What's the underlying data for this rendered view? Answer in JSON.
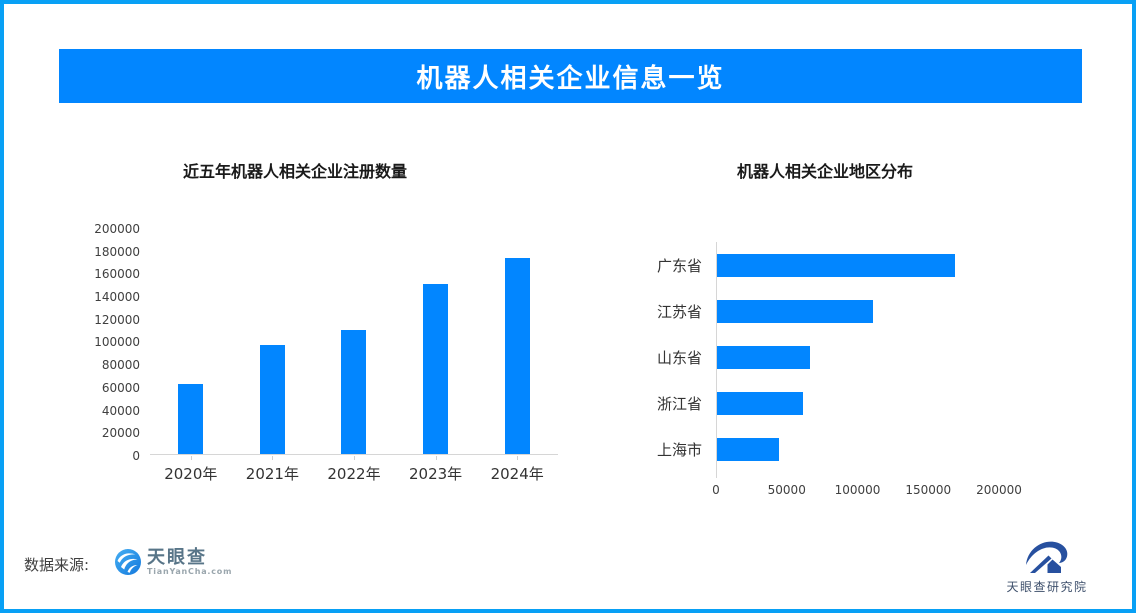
{
  "header": {
    "title": "机器人相关企业信息一览"
  },
  "chart_data": [
    {
      "type": "bar",
      "orientation": "vertical",
      "title": "近五年机器人相关企业注册数量",
      "categories": [
        "2020年",
        "2021年",
        "2022年",
        "2023年",
        "2024年"
      ],
      "values": [
        62000,
        97000,
        110000,
        151000,
        174000
      ],
      "xlabel": "",
      "ylabel": "",
      "ylim": [
        0,
        200000
      ],
      "yticks": [
        0,
        20000,
        40000,
        60000,
        80000,
        100000,
        120000,
        140000,
        160000,
        180000,
        200000
      ],
      "grid": false,
      "legend": false,
      "bar_color": "#0286ff"
    },
    {
      "type": "bar",
      "orientation": "horizontal",
      "title": "机器人相关企业地区分布",
      "categories": [
        "广东省",
        "江苏省",
        "山东省",
        "浙江省",
        "上海市"
      ],
      "values": [
        168000,
        110000,
        66000,
        61000,
        44000
      ],
      "xlabel": "",
      "ylabel": "",
      "xlim": [
        0,
        200000
      ],
      "xticks": [
        0,
        50000,
        100000,
        150000,
        200000
      ],
      "grid": false,
      "legend": false,
      "bar_color": "#0286ff"
    }
  ],
  "footer": {
    "source_label": "数据来源:",
    "tianyancha_logo": {
      "name": "天眼查",
      "domain": "TianYanCha.com"
    },
    "institute_logo": {
      "name": "天眼查研究院"
    }
  },
  "colors": {
    "primary": "#0286ff",
    "border": "#08a0f5",
    "axis": "#d6d6d6",
    "banner_text": "#ffffff"
  }
}
